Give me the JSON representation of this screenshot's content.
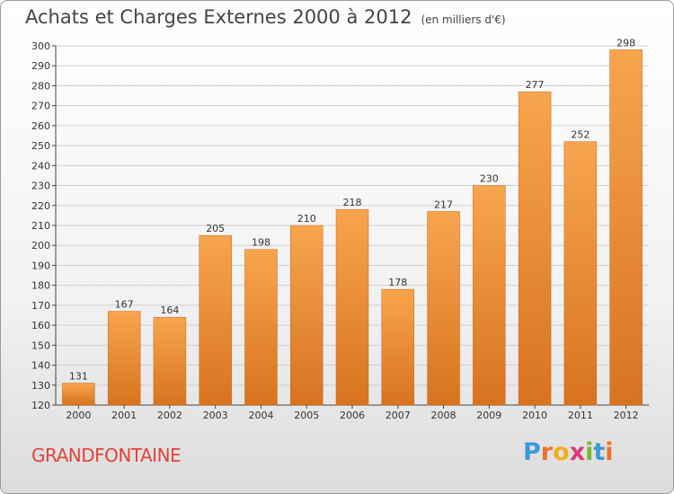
{
  "title": "Achats et Charges Externes 2000 à 2012",
  "subtitle": "(en milliers d'€)",
  "place": "GRANDFONTAINE",
  "logo": {
    "letters": [
      "P",
      "r",
      "o",
      "x",
      "i",
      "t",
      "i"
    ],
    "colors": [
      "#3b9ad9",
      "#e8732a",
      "#f0b020",
      "#d93a7a",
      "#7ab82e",
      "#3b9ad9",
      "#e8732a"
    ]
  },
  "colors": {
    "bar_top": "#f7a54e",
    "bar_bottom": "#d8731f",
    "grid": "#cfcfcf",
    "axis": "#444444"
  },
  "chart_data": {
    "type": "bar",
    "title": "Achats et Charges Externes 2000 à 2012",
    "subtitle": "(en milliers d'€)",
    "categories": [
      "2000",
      "2001",
      "2002",
      "2003",
      "2004",
      "2005",
      "2006",
      "2007",
      "2008",
      "2009",
      "2010",
      "2011",
      "2012"
    ],
    "values": [
      131,
      167,
      164,
      205,
      198,
      210,
      218,
      178,
      217,
      230,
      277,
      252,
      298
    ],
    "ylim": [
      120,
      300
    ],
    "yticks": [
      120,
      130,
      140,
      150,
      160,
      170,
      180,
      190,
      200,
      210,
      220,
      230,
      240,
      250,
      260,
      270,
      280,
      290,
      300
    ],
    "grid": true,
    "legend": "none"
  }
}
